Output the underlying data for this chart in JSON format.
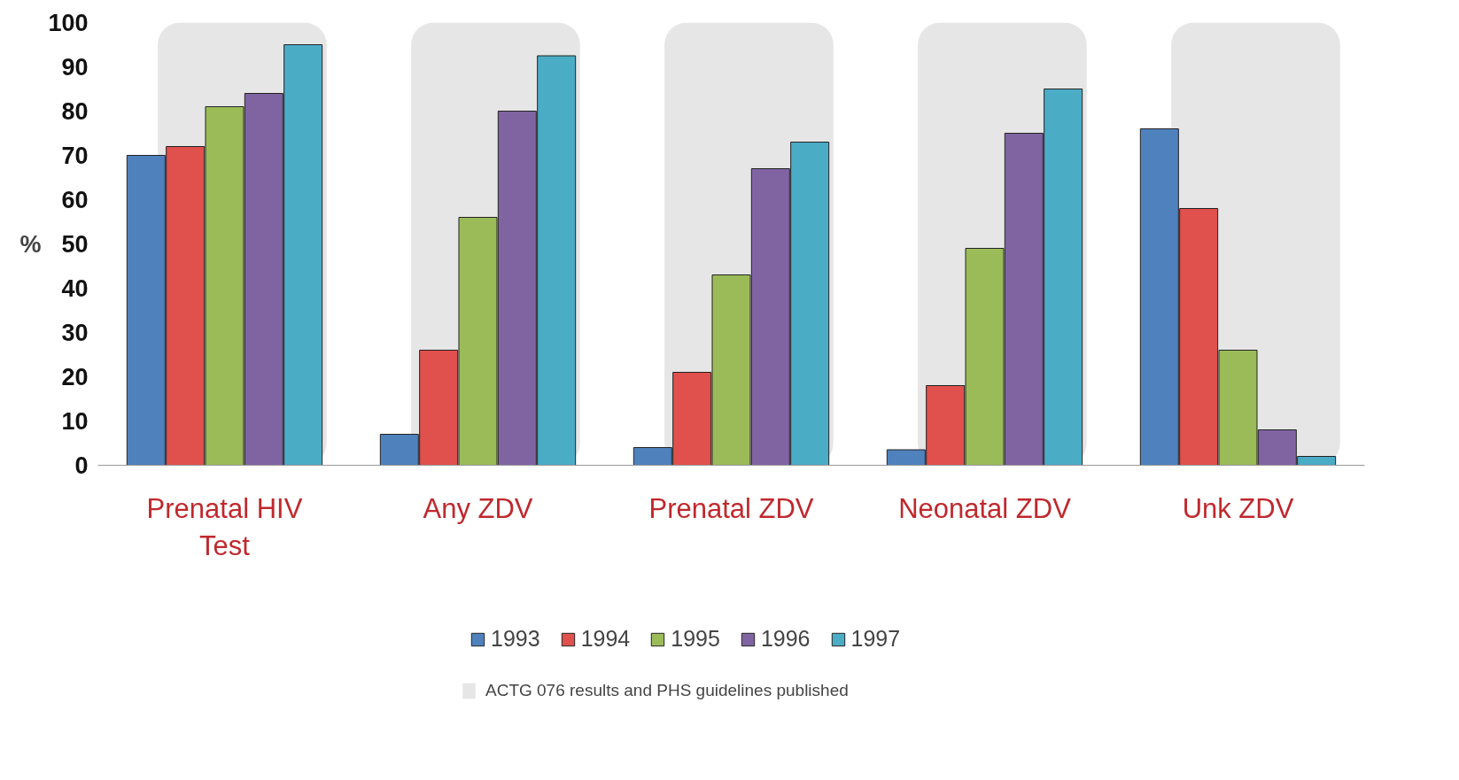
{
  "chart_data": {
    "type": "bar",
    "ylabel": "%",
    "categories": [
      "Prenatal HIV Test",
      "Any ZDV",
      "Prenatal ZDV",
      "Neonatal ZDV",
      "Unk ZDV"
    ],
    "series": [
      {
        "name": "1993",
        "color": "#4f81bd",
        "values": [
          70,
          7,
          4,
          3.5,
          76
        ]
      },
      {
        "name": "1994",
        "color": "#e0504d",
        "values": [
          72,
          26,
          21,
          18,
          58
        ]
      },
      {
        "name": "1995",
        "color": "#9bbb59",
        "values": [
          81,
          56,
          43,
          49,
          26
        ]
      },
      {
        "name": "1996",
        "color": "#8064a2",
        "values": [
          84,
          80,
          67,
          75,
          8
        ]
      },
      {
        "name": "1997",
        "color": "#4bacc6",
        "values": [
          95,
          92.5,
          73,
          85,
          2
        ]
      }
    ],
    "ylim": [
      0,
      100
    ],
    "yticks": [
      0,
      10,
      20,
      30,
      40,
      50,
      60,
      70,
      80,
      90,
      100
    ],
    "grid": false,
    "legend": "bottom",
    "bands": [
      {
        "axis": "x",
        "from": "Prenatal HIV Test",
        "to": "Prenatal HIV Test",
        "label": "ACTG 076 results and PHS guidelines published",
        "color": "#e6e6e6"
      },
      {
        "axis": "x",
        "from": "Any ZDV",
        "to": "Any ZDV",
        "color": "#e6e6e6"
      },
      {
        "axis": "x",
        "from": "Prenatal ZDV",
        "to": "Prenatal ZDV",
        "color": "#e6e6e6"
      },
      {
        "axis": "x",
        "from": "Neonatal ZDV",
        "to": "Neonatal ZDV",
        "color": "#e6e6e6"
      },
      {
        "axis": "x",
        "from": "Unk ZDV",
        "to": "Unk ZDV",
        "color": "#e6e6e6"
      }
    ]
  }
}
